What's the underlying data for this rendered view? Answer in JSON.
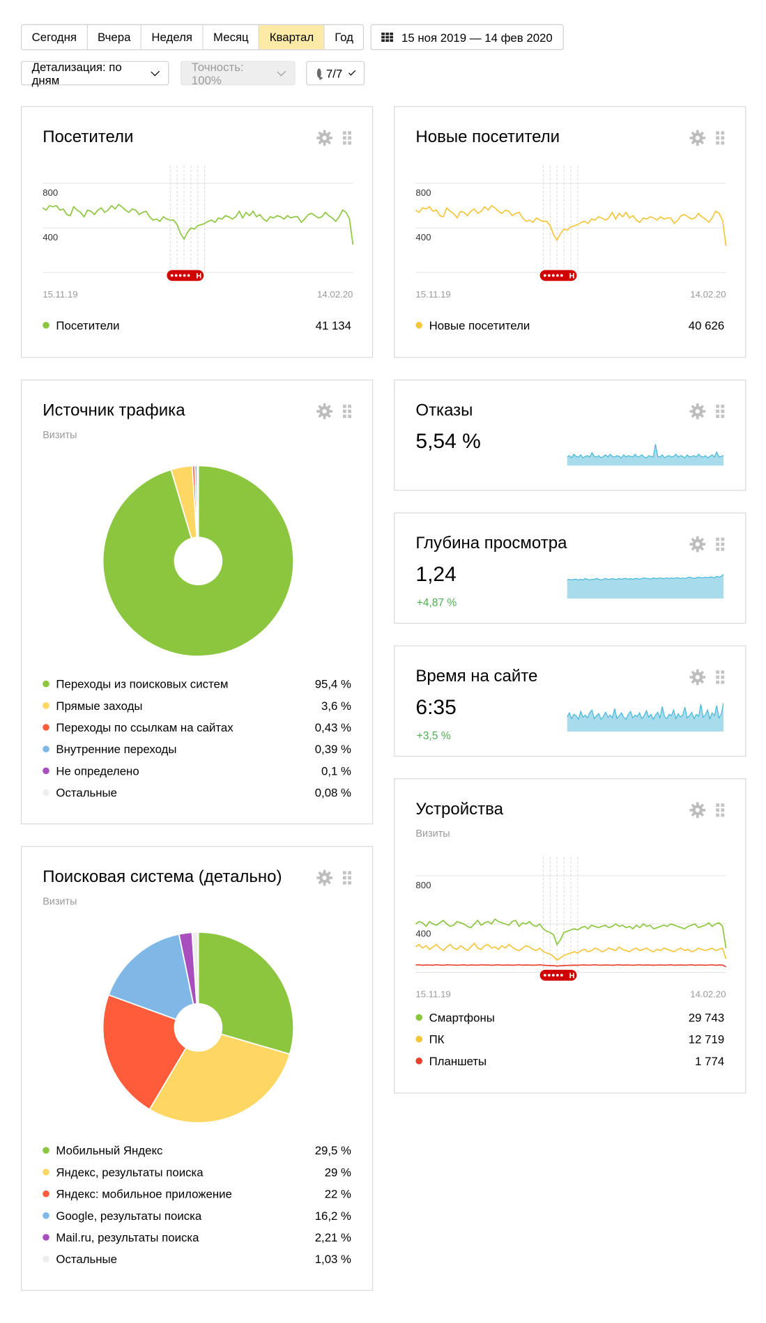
{
  "toolbar": {
    "periods": [
      "Сегодня",
      "Вчера",
      "Неделя",
      "Месяц",
      "Квартал",
      "Год"
    ],
    "active_period": "Квартал",
    "date_range": "15 ноя 2019 — 14 фев 2020",
    "detail_label": "Детализация: по дням",
    "accuracy_label": "Точность: 100%",
    "segments_label": "7/7"
  },
  "colors": {
    "green": "#8cc63e",
    "yellow": "#f5c53c",
    "red": "#e8412d",
    "blue": "#7fb8e6",
    "purple": "#a84ebf",
    "grey": "#eeeeee",
    "cyan": "#a8dcec",
    "cyan_line": "#43b7d9",
    "annotation": "#d10000"
  },
  "visitors": {
    "title": "Посетители",
    "y_ticks": [
      "800",
      "400"
    ],
    "x_start": "15.11.19",
    "x_end": "14.02.20",
    "annotation_label": "Н",
    "legend": [
      {
        "label": "Посетители",
        "value": "41 134",
        "color": "#8cc63e"
      }
    ]
  },
  "new_visitors": {
    "title": "Новые посетители",
    "y_ticks": [
      "800",
      "400"
    ],
    "x_start": "15.11.19",
    "x_end": "14.02.20",
    "annotation_label": "Н",
    "legend": [
      {
        "label": "Новые посетители",
        "value": "40 626",
        "color": "#f5c53c"
      }
    ]
  },
  "traffic": {
    "title": "Источник трафика",
    "subtitle": "Визиты",
    "legend": [
      {
        "label": "Переходы из поисковых систем",
        "value": "95,4 %",
        "color": "#8cc63e"
      },
      {
        "label": "Прямые заходы",
        "value": "3,6 %",
        "color": "#fdd663"
      },
      {
        "label": "Переходы по ссылкам на сайтах",
        "value": "0,43 %",
        "color": "#ff5c3b"
      },
      {
        "label": "Внутренние переходы",
        "value": "0,39 %",
        "color": "#7fb8e6"
      },
      {
        "label": "Не определено",
        "value": "0,1 %",
        "color": "#a84ebf"
      },
      {
        "label": "Остальные",
        "value": "0,08 %",
        "color": "#eeeeee"
      }
    ]
  },
  "search": {
    "title": "Поисковая система (детально)",
    "subtitle": "Визиты",
    "legend": [
      {
        "label": "Мобильный Яндекс",
        "value": "29,5 %",
        "color": "#8cc63e"
      },
      {
        "label": "Яндекс, результаты поиска",
        "value": "29 %",
        "color": "#fdd663"
      },
      {
        "label": "Яндекс: мобильное приложение",
        "value": "22 %",
        "color": "#ff5c3b"
      },
      {
        "label": "Google, результаты поиска",
        "value": "16,2 %",
        "color": "#7fb8e6"
      },
      {
        "label": "Mail.ru, результаты поиска",
        "value": "2,21 %",
        "color": "#a84ebf"
      },
      {
        "label": "Остальные",
        "value": "1,03 %",
        "color": "#eeeeee"
      }
    ]
  },
  "bounce": {
    "title": "Отказы",
    "value": "5,54 %"
  },
  "depth": {
    "title": "Глубина просмотра",
    "value": "1,24",
    "delta": "+4,87 %"
  },
  "time": {
    "title": "Время на сайте",
    "value": "6:35",
    "delta": "+3,5 %"
  },
  "devices": {
    "title": "Устройства",
    "subtitle": "Визиты",
    "y_ticks": [
      "800",
      "400"
    ],
    "x_start": "15.11.19",
    "x_end": "14.02.20",
    "annotation_label": "Н",
    "legend": [
      {
        "label": "Смартфоны",
        "value": "29 743",
        "color": "#8cc63e"
      },
      {
        "label": "ПК",
        "value": "12 719",
        "color": "#f5c53c"
      },
      {
        "label": "Планшеты",
        "value": "1 774",
        "color": "#e8412d"
      }
    ]
  },
  "chart_data": [
    {
      "type": "line",
      "title": "Посетители",
      "ylim": [
        0,
        900
      ],
      "x_range": [
        "15.11.19",
        "14.02.20"
      ],
      "series": [
        {
          "name": "Посетители",
          "values": [
            580,
            560,
            600,
            590,
            600,
            560,
            570,
            520,
            510,
            590,
            560,
            540,
            500,
            560,
            550,
            520,
            560,
            580,
            540,
            560,
            600,
            570,
            610,
            590,
            560,
            540,
            570,
            560,
            520,
            540,
            550,
            500,
            470,
            480,
            460,
            500,
            480,
            470,
            470,
            430,
            350,
            300,
            360,
            400,
            390,
            420,
            430,
            440,
            460,
            470,
            450,
            490,
            480,
            510,
            500,
            480,
            500,
            550,
            490,
            540,
            510,
            550,
            500,
            520,
            480,
            460,
            500,
            490,
            510,
            500,
            480,
            510,
            490,
            500,
            500,
            450,
            480,
            520,
            530,
            510,
            490,
            500,
            540,
            510,
            490,
            460,
            500,
            560,
            540,
            480,
            250
          ]
        }
      ],
      "grid": true
    },
    {
      "type": "line",
      "title": "Новые посетители",
      "ylim": [
        0,
        900
      ],
      "x_range": [
        "15.11.19",
        "14.02.20"
      ],
      "series": [
        {
          "name": "Новые посетители",
          "values": [
            560,
            540,
            580,
            570,
            590,
            550,
            560,
            510,
            500,
            580,
            550,
            530,
            490,
            550,
            540,
            510,
            550,
            570,
            530,
            550,
            590,
            560,
            600,
            580,
            550,
            530,
            560,
            550,
            510,
            530,
            540,
            490,
            460,
            470,
            450,
            490,
            470,
            460,
            460,
            420,
            340,
            290,
            350,
            390,
            380,
            410,
            420,
            430,
            450,
            460,
            440,
            480,
            470,
            500,
            490,
            470,
            490,
            540,
            480,
            530,
            500,
            540,
            490,
            510,
            470,
            450,
            490,
            480,
            500,
            490,
            470,
            500,
            480,
            490,
            490,
            440,
            470,
            510,
            520,
            500,
            480,
            490,
            530,
            500,
            480,
            450,
            490,
            550,
            530,
            470,
            240
          ]
        }
      ],
      "grid": true
    },
    {
      "type": "pie",
      "title": "Источник трафика",
      "categories": [
        "Переходы из поисковых систем",
        "Прямые заходы",
        "Переходы по ссылкам на сайтах",
        "Внутренние переходы",
        "Не определено",
        "Остальные"
      ],
      "values": [
        95.4,
        3.6,
        0.43,
        0.39,
        0.1,
        0.08
      ]
    },
    {
      "type": "pie",
      "title": "Поисковая система (детально)",
      "categories": [
        "Мобильный Яндекс",
        "Яндекс, результаты поиска",
        "Яндекс: мобильное приложение",
        "Google, результаты поиска",
        "Mail.ru, результаты поиска",
        "Остальные"
      ],
      "values": [
        29.5,
        29,
        22,
        16.2,
        2.21,
        1.03
      ]
    },
    {
      "type": "area",
      "title": "Отказы",
      "series": [
        {
          "values": [
            12,
            14,
            11,
            16,
            13,
            12,
            15,
            11,
            13,
            14,
            12,
            18,
            13,
            12,
            14,
            11,
            13,
            15,
            12,
            16,
            13,
            12,
            14,
            13,
            11,
            15,
            12,
            14,
            13,
            12,
            16,
            12,
            13,
            15,
            12,
            11,
            14,
            13,
            12,
            30,
            13,
            12,
            15,
            11,
            13,
            14,
            12,
            13,
            16,
            12,
            14,
            13,
            11,
            15,
            12,
            13,
            14,
            12,
            16,
            13,
            12,
            14,
            11,
            13,
            15,
            12,
            19,
            12,
            13,
            14
          ]
        }
      ]
    },
    {
      "type": "area",
      "title": "Глубина просмотра",
      "series": [
        {
          "values": [
            26,
            27,
            26,
            27,
            27,
            26,
            27,
            26,
            28,
            27,
            26,
            27,
            27,
            28,
            27,
            26,
            27,
            28,
            27,
            27,
            28,
            27,
            27,
            28,
            27,
            28,
            28,
            27,
            28,
            27,
            28,
            28,
            27,
            28,
            29,
            28,
            28,
            27,
            29,
            28,
            28,
            29,
            28,
            28,
            29,
            28,
            29,
            28,
            29,
            29,
            28,
            29,
            28,
            29,
            30,
            29,
            28,
            29,
            30,
            29,
            29,
            30,
            29,
            30,
            30,
            29,
            31,
            30,
            31,
            34
          ]
        }
      ]
    },
    {
      "type": "area",
      "title": "Время на сайте",
      "series": [
        {
          "values": [
            20,
            26,
            18,
            24,
            22,
            17,
            28,
            20,
            23,
            19,
            26,
            30,
            18,
            22,
            25,
            17,
            21,
            27,
            20,
            23,
            19,
            32,
            18,
            22,
            26,
            20,
            17,
            24,
            28,
            19,
            23,
            21,
            26,
            18,
            22,
            29,
            20,
            24,
            17,
            23,
            27,
            19,
            35,
            21,
            18,
            24,
            22,
            30,
            18,
            25,
            20,
            23,
            34,
            19,
            22,
            27,
            18,
            24,
            21,
            38,
            20,
            23,
            30,
            18,
            26,
            22,
            36,
            19,
            24,
            40
          ]
        }
      ]
    },
    {
      "type": "line",
      "title": "Устройства",
      "ylim": [
        0,
        900
      ],
      "x_range": [
        "15.11.19",
        "14.02.20"
      ],
      "series": [
        {
          "name": "Смартфоны",
          "values": [
            400,
            420,
            410,
            380,
            420,
            400,
            390,
            410,
            430,
            400,
            380,
            390,
            420,
            410,
            400,
            380,
            370,
            400,
            430,
            390,
            410,
            420,
            400,
            440,
            420,
            410,
            400,
            390,
            420,
            430,
            380,
            410,
            400,
            420,
            390,
            380,
            400,
            360,
            340,
            330,
            310,
            230,
            270,
            330,
            340,
            350,
            360,
            350,
            370,
            380,
            360,
            390,
            380,
            370,
            380,
            390,
            370,
            380,
            400,
            380,
            390,
            370,
            380,
            360,
            390,
            370,
            400,
            380,
            390,
            360,
            370,
            380,
            390,
            380,
            400,
            390,
            380,
            370,
            360,
            380,
            390,
            400,
            370,
            380,
            390,
            410,
            380,
            400,
            410,
            380,
            200
          ]
        },
        {
          "name": "ПК",
          "values": [
            210,
            230,
            200,
            220,
            190,
            210,
            230,
            200,
            180,
            210,
            230,
            200,
            190,
            220,
            200,
            180,
            210,
            240,
            200,
            190,
            220,
            230,
            200,
            210,
            190,
            220,
            200,
            230,
            210,
            190,
            180,
            200,
            220,
            210,
            190,
            180,
            200,
            170,
            160,
            150,
            130,
            100,
            120,
            140,
            150,
            160,
            170,
            160,
            180,
            190,
            170,
            180,
            200,
            190,
            170,
            180,
            200,
            190,
            180,
            210,
            190,
            180,
            170,
            190,
            200,
            180,
            190,
            200,
            180,
            170,
            190,
            180,
            200,
            190,
            180,
            170,
            190,
            200,
            180,
            190,
            170,
            180,
            200,
            190,
            180,
            190,
            200,
            180,
            190,
            200,
            110
          ]
        },
        {
          "name": "Планшеты",
          "values": [
            60,
            62,
            58,
            61,
            60,
            59,
            63,
            60,
            58,
            62,
            61,
            60,
            59,
            60,
            62,
            58,
            61,
            60,
            59,
            62,
            60,
            61,
            58,
            60,
            62,
            59,
            60,
            61,
            58,
            60,
            62,
            59,
            61,
            60,
            58,
            60,
            62,
            59,
            57,
            56,
            55,
            52,
            54,
            56,
            57,
            58,
            59,
            58,
            60,
            61,
            59,
            60,
            62,
            60,
            59,
            61,
            60,
            58,
            60,
            62,
            59,
            61,
            60,
            58,
            60,
            62,
            59,
            61,
            60,
            58,
            60,
            61,
            59,
            60,
            62,
            58,
            60,
            61,
            59,
            60,
            62,
            58,
            61,
            60,
            59,
            60,
            62,
            58,
            61,
            60,
            45
          ]
        }
      ],
      "grid": true
    }
  ]
}
